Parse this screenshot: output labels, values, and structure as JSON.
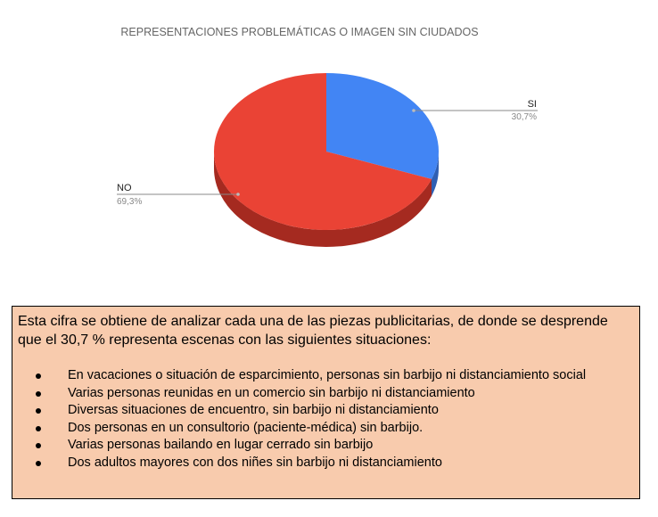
{
  "chart_data": {
    "type": "pie",
    "title": "REPRESENTACIONES PROBLEMÁTICAS O IMAGEN SIN CIUDADOS",
    "three_d": true,
    "legend": "none",
    "slices": [
      {
        "label": "SI",
        "value": 30.7,
        "value_label": "30,7%",
        "color": "#4285f4",
        "side_color": "#2f5fb3"
      },
      {
        "label": "NO",
        "value": 69.3,
        "value_label": "69,3%",
        "color": "#ea4335",
        "side_color": "#a52a20"
      }
    ]
  },
  "info_box": {
    "intro": "Esta cifra se obtiene de analizar cada una de las piezas publicitarias, de donde se desprende que el 30,7 % representa escenas con las siguientes situaciones:",
    "items": [
      "En vacaciones o situación de esparcimiento, personas sin barbijo ni distanciamiento social",
      "Varias personas reunidas en un comercio sin barbijo ni distanciamiento",
      "Diversas situaciones de encuentro, sin barbijo ni distanciamiento",
      "Dos personas en un consultorio (paciente-médica) sin barbijo.",
      "Varias personas bailando en lugar cerrado sin barbijo",
      "Dos adultos mayores con dos niñes sin barbijo ni distanciamiento"
    ],
    "background": "#f8cbad"
  }
}
